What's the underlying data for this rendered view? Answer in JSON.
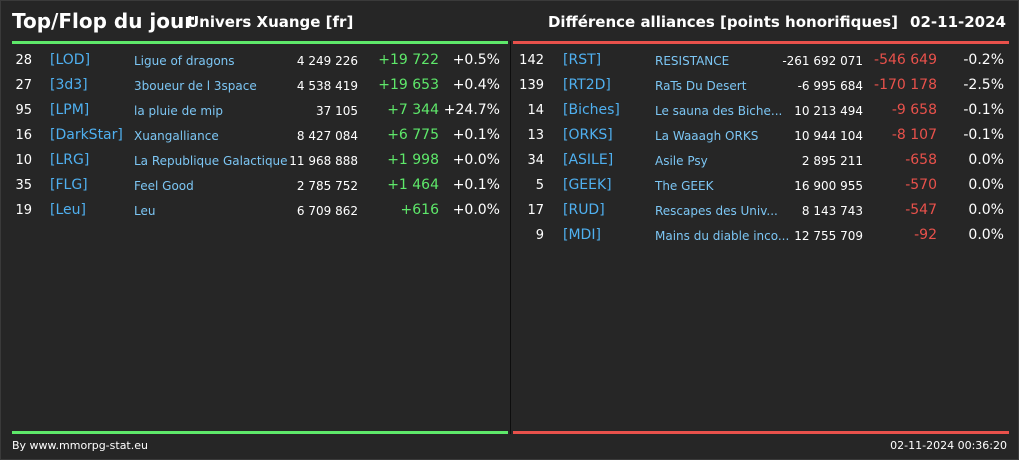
{
  "header": {
    "title": "Top/Flop du jour",
    "server": "Univers Xuange [fr]",
    "metric": "Différence alliances [points honorifiques]",
    "date": "02-11-2024"
  },
  "colors": {
    "positive": "#5ee86a",
    "negative": "#e8514b",
    "tag": "#4fb0f0",
    "name": "#7cc6f4"
  },
  "top": [
    {
      "rank": "28",
      "tag": "[LOD]",
      "name": "Ligue of dragons",
      "points": "4 249 226",
      "diff": "+19 722",
      "pct": "+0.5%"
    },
    {
      "rank": "27",
      "tag": "[3d3]",
      "name": "3boueur de l 3space",
      "points": "4 538 419",
      "diff": "+19 653",
      "pct": "+0.4%"
    },
    {
      "rank": "95",
      "tag": "[LPM]",
      "name": "la pluie de mip",
      "points": "37 105",
      "diff": "+7 344",
      "pct": "+24.7%"
    },
    {
      "rank": "16",
      "tag": "[DarkStar]",
      "name": "Xuangalliance",
      "points": "8 427 084",
      "diff": "+6 775",
      "pct": "+0.1%"
    },
    {
      "rank": "10",
      "tag": "[LRG]",
      "name": "La Republique Galactique",
      "points": "11 968 888",
      "diff": "+1 998",
      "pct": "+0.0%"
    },
    {
      "rank": "35",
      "tag": "[FLG]",
      "name": "Feel Good",
      "points": "2 785 752",
      "diff": "+1 464",
      "pct": "+0.1%"
    },
    {
      "rank": "19",
      "tag": "[Leu]",
      "name": "Leu",
      "points": "6 709 862",
      "diff": "+616",
      "pct": "+0.0%"
    }
  ],
  "flop": [
    {
      "rank": "142",
      "tag": "[RST]",
      "name": "RESISTANCE",
      "points": "-261 692 071",
      "diff": "-546 649",
      "pct": "-0.2%"
    },
    {
      "rank": "139",
      "tag": "[RT2D]",
      "name": "RaTs Du Desert",
      "points": "-6 995 684",
      "diff": "-170 178",
      "pct": "-2.5%"
    },
    {
      "rank": "14",
      "tag": "[Biches]",
      "name": "Le sauna des Biche...",
      "points": "10 213 494",
      "diff": "-9 658",
      "pct": "-0.1%"
    },
    {
      "rank": "13",
      "tag": "[ORKS]",
      "name": "La Waaagh ORKS",
      "points": "10 944 104",
      "diff": "-8 107",
      "pct": "-0.1%"
    },
    {
      "rank": "34",
      "tag": "[ASILE]",
      "name": "Asile Psy",
      "points": "2 895 211",
      "diff": "-658",
      "pct": "0.0%"
    },
    {
      "rank": "5",
      "tag": "[GEEK]",
      "name": "The GEEK",
      "points": "16 900 955",
      "diff": "-570",
      "pct": "0.0%"
    },
    {
      "rank": "17",
      "tag": "[RUD]",
      "name": "Rescapes des Univ...",
      "points": "8 143 743",
      "diff": "-547",
      "pct": "0.0%"
    },
    {
      "rank": "9",
      "tag": "[MDI]",
      "name": "Mains du diable inco...",
      "points": "12 755 709",
      "diff": "-92",
      "pct": "0.0%"
    }
  ],
  "footer": {
    "credit": "By www.mmorpg-stat.eu",
    "timestamp": "02-11-2024 00:36:20"
  }
}
